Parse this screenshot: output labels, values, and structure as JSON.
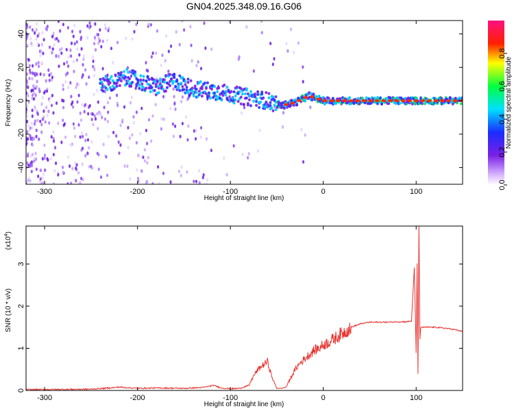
{
  "figure_title": "GN04.2025.348.09.16.G06",
  "colors": {
    "snr_line": "#e8312e",
    "spectrum_base": "#7a1fe6",
    "frame": "#000000"
  },
  "chart_data": [
    {
      "type": "heatmap",
      "title": "GN04.2025.348.09.16.G06",
      "xlabel": "Height of straight line (km)",
      "ylabel": "Frequency (Hz)",
      "xlim": [
        -320,
        150
      ],
      "ylim": [
        -50,
        48
      ],
      "x_ticks": [
        -300,
        -200,
        -100,
        0,
        100
      ],
      "x_tick_labels": [
        "-300",
        "-200",
        "-100",
        "0",
        "100"
      ],
      "y_ticks": [
        -40,
        -20,
        0,
        20,
        40
      ],
      "y_tick_labels": [
        "-40",
        "-20",
        "0",
        "20",
        "40"
      ],
      "colorbar": {
        "label": "Normalized spectral amplitude",
        "range": [
          0,
          1
        ],
        "ticks": [
          0.0,
          0.2,
          0.4,
          0.6,
          0.8
        ],
        "tick_labels": [
          "0.0",
          "0.2",
          "0.4",
          "0.6",
          "0.8"
        ],
        "colormap": "rainbow (white-violet-blue-cyan-green-yellow-red-magenta)"
      },
      "dominant_frequency_track": {
        "x": [
          -230,
          -210,
          -180,
          -160,
          -140,
          -120,
          -100,
          -80,
          -60,
          -45,
          -30,
          -15,
          0,
          50,
          100,
          150
        ],
        "y": [
          10,
          14,
          8,
          12,
          7,
          6,
          4,
          2,
          0,
          -3,
          -1,
          3,
          0,
          0,
          0,
          0
        ]
      },
      "grid": false
    },
    {
      "type": "line",
      "xlabel": "Height of straight line (km)",
      "ylabel": "SNR (10 * v/v)",
      "y_scale_label": "(x10",
      "y_scale_exponent": "4",
      "xlim": [
        -320,
        150
      ],
      "ylim": [
        0,
        3.9
      ],
      "x_ticks": [
        -300,
        -200,
        -100,
        0,
        100
      ],
      "x_tick_labels": [
        "-300",
        "-200",
        "-100",
        "0",
        "100"
      ],
      "y_ticks": [
        0,
        1,
        2,
        3
      ],
      "y_tick_labels": [
        "0",
        "1",
        "2",
        "3"
      ],
      "series": [
        {
          "x": [
            -320,
            -250,
            -230,
            -220,
            -200,
            -180,
            -150,
            -130,
            -118,
            -110,
            -100,
            -90,
            -80,
            -75,
            -70,
            -65,
            -60,
            -55,
            -50,
            -45,
            -40,
            -35,
            -30,
            -25,
            -20,
            -15,
            -10,
            -5,
            0,
            10,
            20,
            30,
            40,
            50,
            60,
            70,
            80,
            90,
            95,
            98,
            100,
            101,
            102,
            103,
            104,
            105,
            110,
            120,
            130,
            140,
            150
          ],
          "y": [
            0.02,
            0.03,
            0.06,
            0.08,
            0.05,
            0.06,
            0.05,
            0.07,
            0.12,
            0.06,
            0.04,
            0.05,
            0.12,
            0.35,
            0.5,
            0.6,
            0.68,
            0.3,
            0.05,
            0.05,
            0.08,
            0.3,
            0.5,
            0.65,
            0.75,
            0.85,
            0.95,
            1.0,
            1.08,
            1.2,
            1.35,
            1.5,
            1.58,
            1.62,
            1.62,
            1.62,
            1.63,
            1.63,
            1.65,
            2.9,
            0.9,
            3.0,
            0.4,
            3.9,
            1.2,
            1.5,
            1.5,
            1.5,
            1.48,
            1.45,
            1.4
          ]
        }
      ],
      "grid": false
    }
  ]
}
